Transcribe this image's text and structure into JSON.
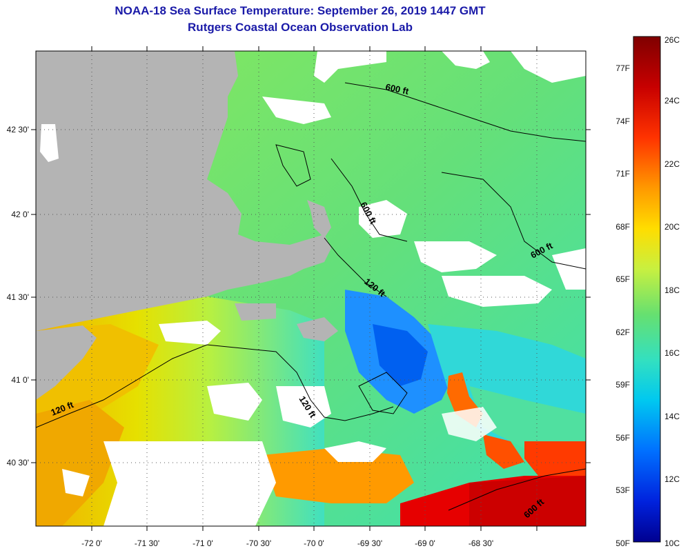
{
  "header": {
    "title": "NOAA-18 Sea Surface Temperature:  September 26, 2019 1447 GMT",
    "subtitle": "Rutgers Coastal Ocean Observation Lab"
  },
  "map": {
    "longitude_ticks": [
      "-72 0'",
      "-71 30'",
      "-71 0'",
      "-70 30'",
      "-70 0'",
      "-69 30'",
      "-69 0'",
      "-68 30'"
    ],
    "latitude_ticks": [
      "42 30'",
      "42 0'",
      "41 30'",
      "41 0'",
      "40 30'"
    ],
    "contour_labels": [
      "600 ft",
      "600 ft",
      "600 ft",
      "120 ft",
      "120 ft",
      "120 ft",
      "600 ft"
    ],
    "colors": {
      "land": "#b4b4b4",
      "cloud": "#ffffff",
      "grid": "#555555"
    }
  },
  "colorbar": {
    "fahrenheit_labels": [
      "77F",
      "74F",
      "71F",
      "68F",
      "65F",
      "62F",
      "59F",
      "56F",
      "53F",
      "50F"
    ],
    "celsius_labels": [
      "26C",
      "24C",
      "22C",
      "20C",
      "18C",
      "16C",
      "14C",
      "12C",
      "10C"
    ],
    "scale_colors": [
      "#7f0000",
      "#d40000",
      "#ff3300",
      "#ff9900",
      "#ffdd00",
      "#c8f040",
      "#66e070",
      "#33e0c0",
      "#00c8f0",
      "#0080ff",
      "#0033ee",
      "#000090"
    ]
  }
}
